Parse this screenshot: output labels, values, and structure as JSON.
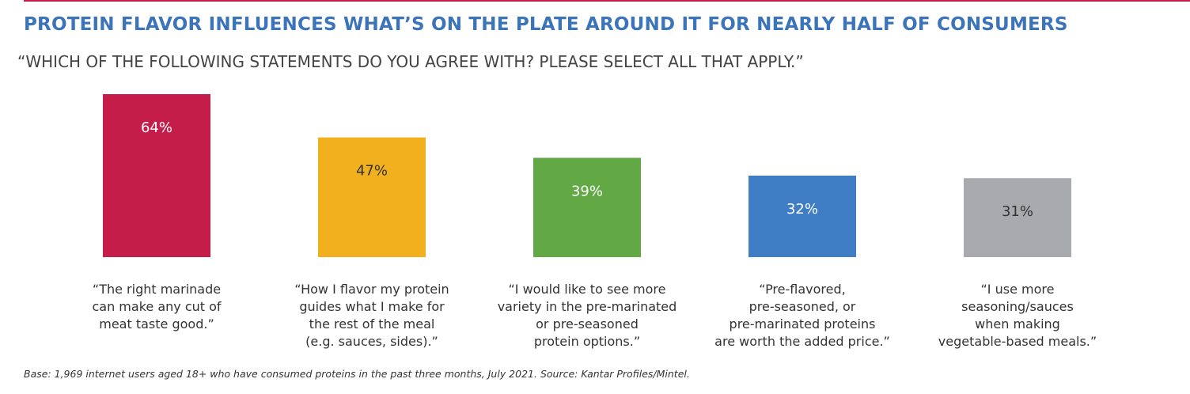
{
  "header": {
    "title": "PROTEIN FLAVOR INFLUENCES WHAT’S ON THE PLATE AROUND IT FOR NEARLY HALF OF CONSUMERS",
    "subtitle": "“WHICH OF THE FOLLOWING STATEMENTS DO YOU AGREE WITH? PLEASE SELECT ALL THAT APPLY.”",
    "accent_color": "#c41d4a",
    "title_color": "#3b74b8"
  },
  "chart_data": {
    "type": "bar",
    "title": "PROTEIN FLAVOR INFLUENCES WHAT’S ON THE PLATE AROUND IT FOR NEARLY HALF OF CONSUMERS",
    "subtitle": "“WHICH OF THE FOLLOWING STATEMENTS DO YOU AGREE WITH? PLEASE SELECT ALL THAT APPLY.”",
    "xlabel": "",
    "ylabel": "",
    "ylim": [
      0,
      64
    ],
    "grid": false,
    "unit": "%",
    "categories": [
      [
        "“The right marinade",
        "can make any cut of",
        "meat taste good.”"
      ],
      [
        "“How I flavor my protein",
        "guides what I make for",
        "the rest of the meal",
        "(e.g. sauces, sides).”"
      ],
      [
        "“I would like to see more",
        "variety in the pre-marinated",
        "or pre-seasoned",
        "protein options.”"
      ],
      [
        "“Pre-flavored,",
        "pre-seasoned, or",
        "pre-marinated proteins",
        "are worth the added price.”"
      ],
      [
        "“I use more",
        "seasoning/sauces",
        "when making",
        "vegetable-based meals.”"
      ]
    ],
    "values": [
      64,
      47,
      39,
      32,
      31
    ],
    "value_labels": [
      "64%",
      "47%",
      "39%",
      "32%",
      "31%"
    ],
    "colors": [
      "#c41d4a",
      "#f2b01e",
      "#62a845",
      "#3f7dc4",
      "#a9aaad"
    ],
    "label_colors": [
      "#ffffff",
      "#333333",
      "#ffffff",
      "#ffffff",
      "#333333"
    ]
  },
  "footnote": "Base: 1,969 internet users aged 18+ who have consumed proteins in the past three months, July 2021. Source: Kantar Profiles/Mintel."
}
